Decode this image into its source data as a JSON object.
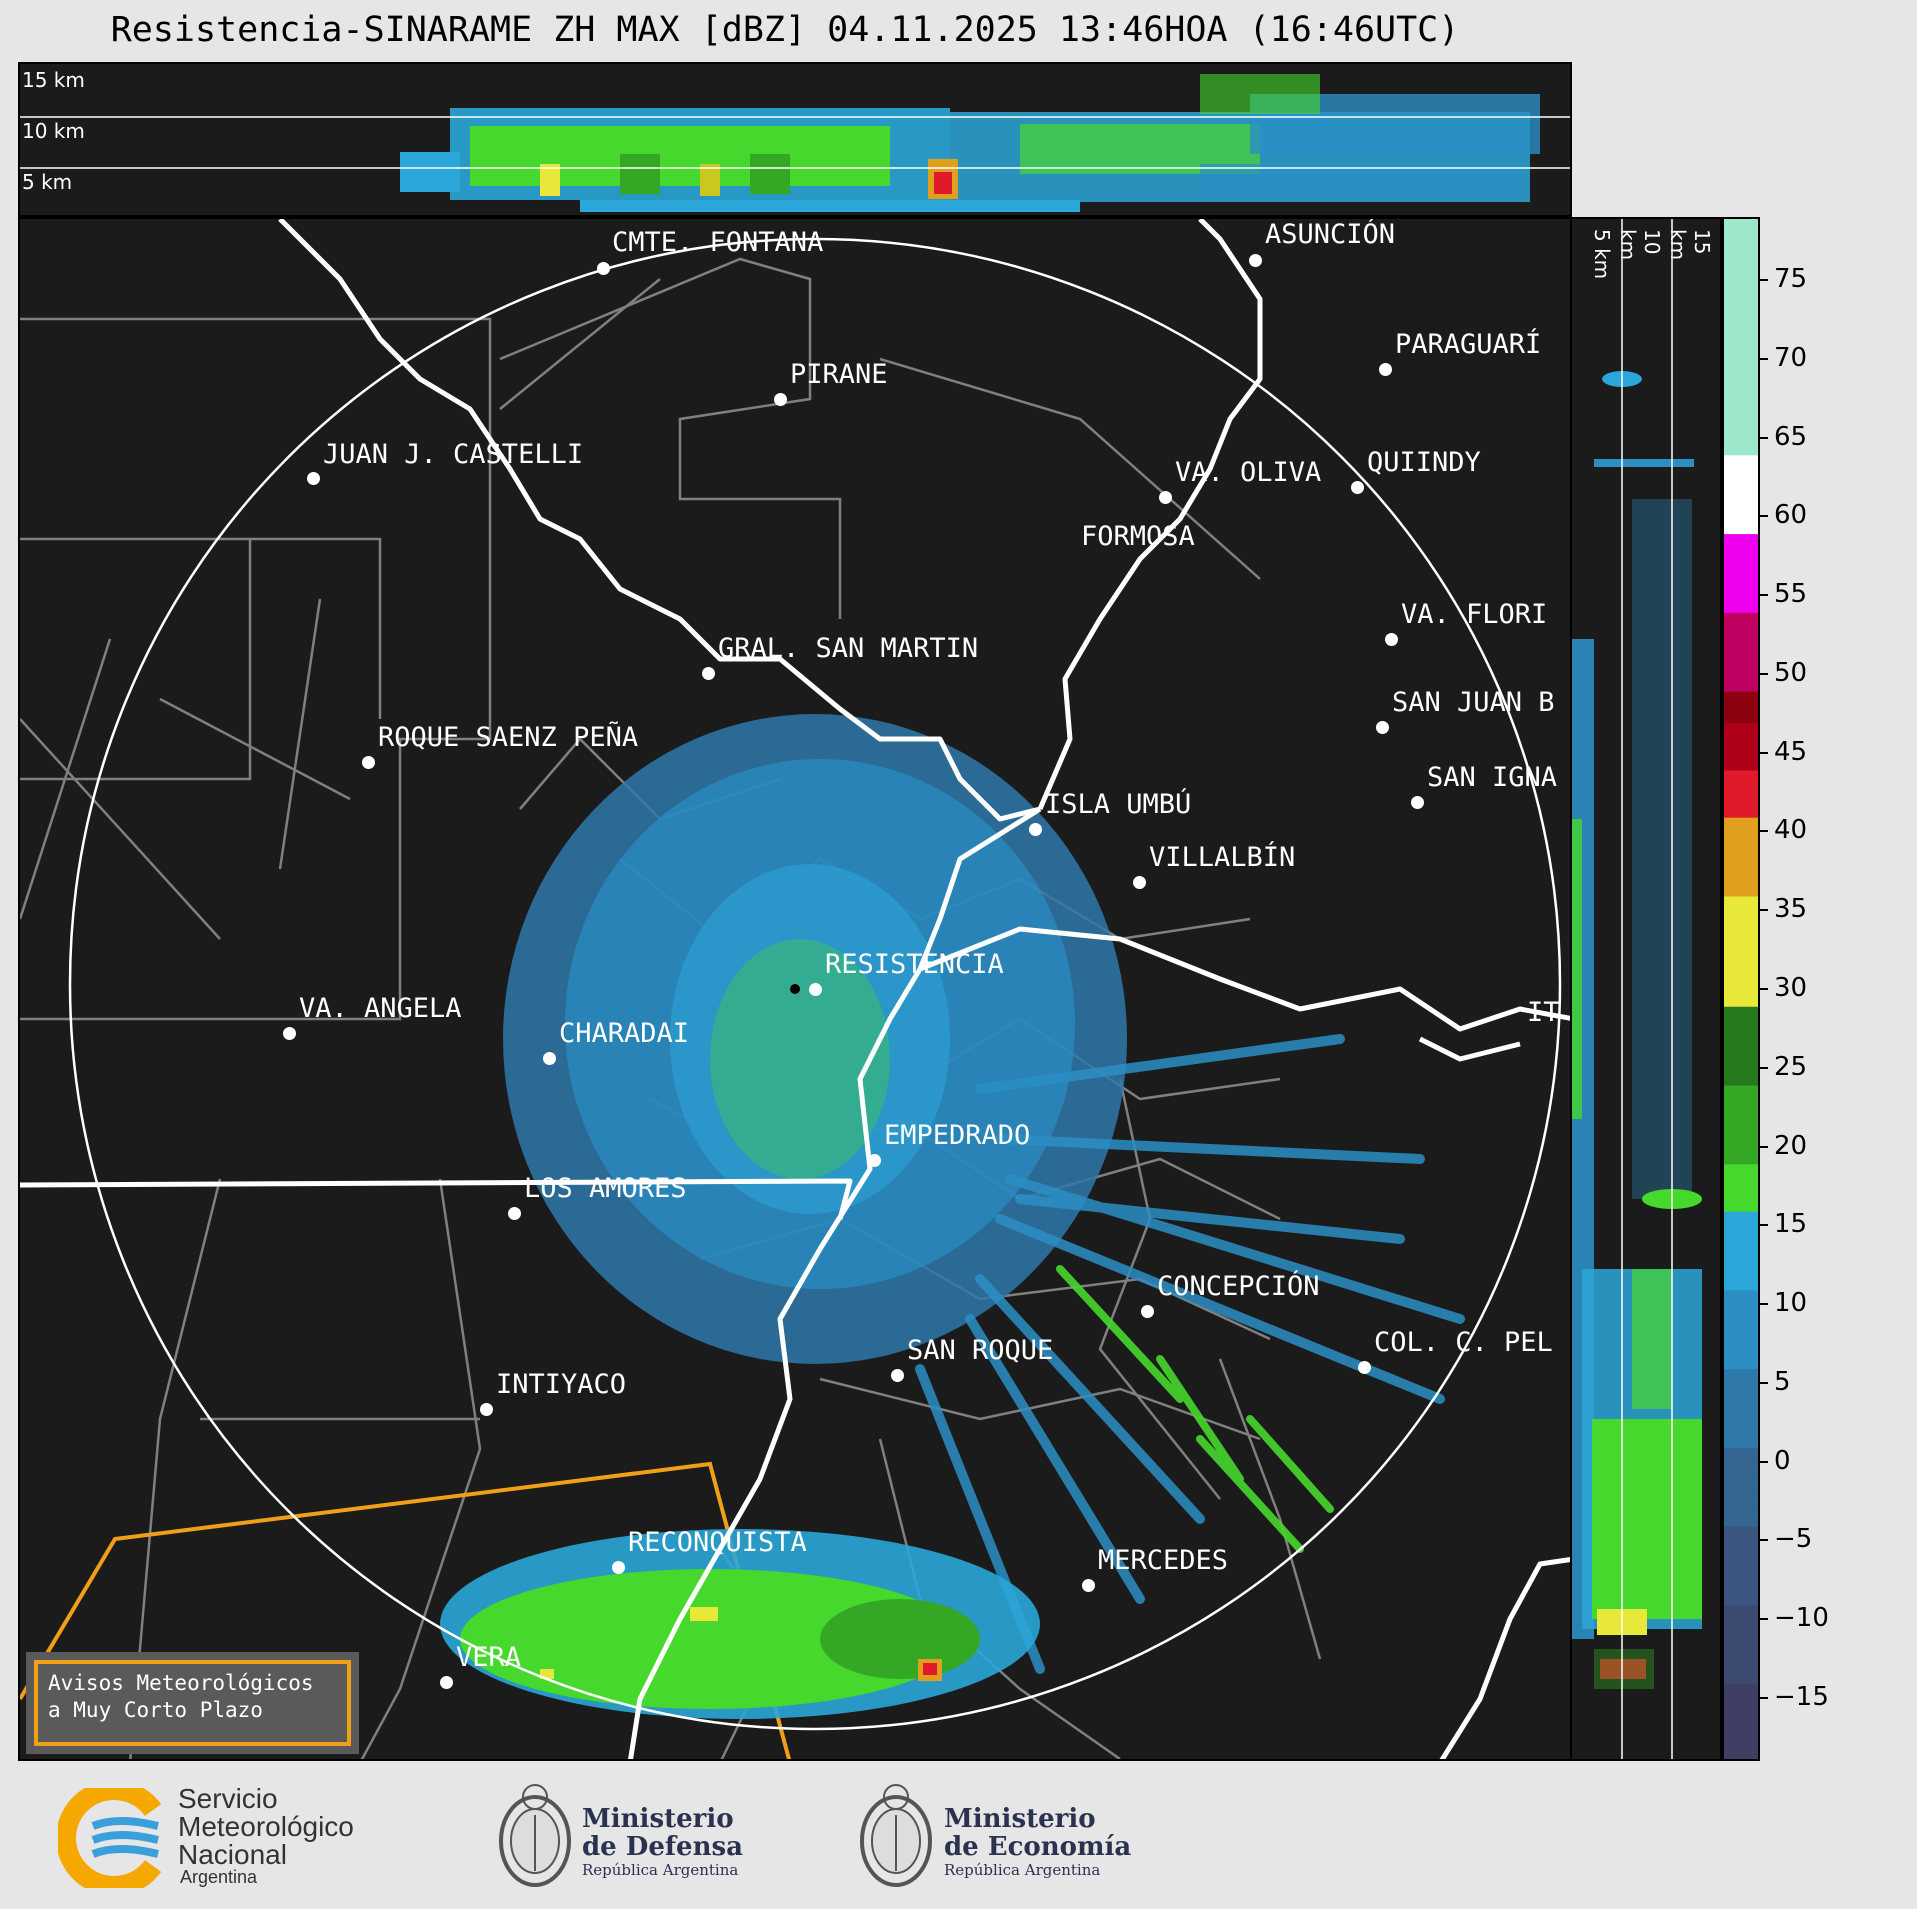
{
  "title": "Resistencia-SINARAME ZH MAX [dBZ] 04.11.2025 13:46HOA (16:46UTC)",
  "top_panel": {
    "heights": [
      "15 km",
      "10 km",
      "5 km"
    ]
  },
  "side_panel": {
    "heights": [
      "5 km",
      "10 km",
      "15 km"
    ]
  },
  "colorbar": {
    "ticks": [
      "75",
      "70",
      "65",
      "60",
      "55",
      "50",
      "45",
      "40",
      "35",
      "30",
      "25",
      "20",
      "15",
      "10",
      "5",
      "0",
      "−5",
      "−10",
      "−15"
    ],
    "colors": {
      "15": "#2aa6d8",
      "10": "#2b8fc4",
      "5": "#2e78aa",
      "0": "#356591",
      "-5": "#3a557f",
      "-10": "#3c4a72",
      "-15": "#3f3f66",
      "20": "#46d82c",
      "25": "#34a824",
      "30": "#267a1e",
      "35": "#e8e83a",
      "40": "#e0a01e",
      "45": "#e01a2a",
      "50": "#8c0010",
      "55": "#ee00ee",
      "60": "#ffffff",
      "70": "#9ce8c8"
    }
  },
  "cities": [
    {
      "name": "CMTE. FONTANA"
    },
    {
      "name": "ASUNCIÓN"
    },
    {
      "name": "PIRANE"
    },
    {
      "name": "PARAGUARÍ"
    },
    {
      "name": "JUAN J. CASTELLI"
    },
    {
      "name": "VA. OLIVA"
    },
    {
      "name": "QUIINDY"
    },
    {
      "name": "FORMOSA"
    },
    {
      "name": "VA. FLORI"
    },
    {
      "name": "GRAL. SAN MARTIN"
    },
    {
      "name": "SAN JUAN B"
    },
    {
      "name": "ROQUE SAENZ PEÑA"
    },
    {
      "name": "SAN IGNA"
    },
    {
      "name": "ISLA UMBÚ"
    },
    {
      "name": "VILLALBÍN"
    },
    {
      "name": "RESISTENCIA"
    },
    {
      "name": "IT"
    },
    {
      "name": "VA. ANGELA"
    },
    {
      "name": "CHARADAI"
    },
    {
      "name": "EMPEDRADO"
    },
    {
      "name": "LOS AMORES"
    },
    {
      "name": "CONCEPCIÓN"
    },
    {
      "name": "COL. C. PEL"
    },
    {
      "name": "SAN ROQUE"
    },
    {
      "name": "INTIYACO"
    },
    {
      "name": "RECONQUISTA"
    },
    {
      "name": "MERCEDES"
    },
    {
      "name": "VERA"
    }
  ],
  "warning": {
    "line1": "Avisos Meteorológicos",
    "line2": "a Muy Corto Plazo"
  },
  "logos": {
    "smn": {
      "line1": "Servicio",
      "line2": "Meteorológico",
      "line3": "Nacional",
      "sub": "Argentina"
    },
    "defensa": {
      "line1": "Ministerio",
      "line2": "de Defensa",
      "sub": "República Argentina"
    },
    "economia": {
      "line1": "Ministerio",
      "line2": "de Economía",
      "sub": "República Argentina"
    }
  }
}
